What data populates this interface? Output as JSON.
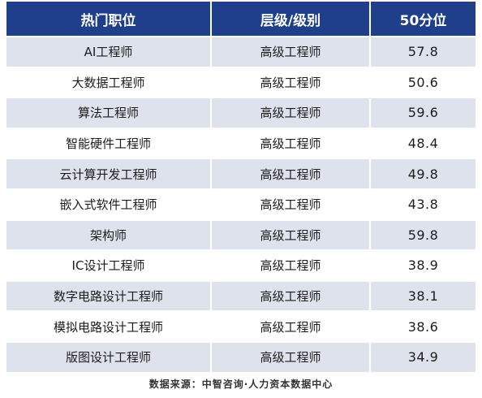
{
  "table": {
    "headers": [
      "热门职位",
      "层级/级别",
      "50分位"
    ],
    "rows": [
      {
        "position": "AI工程师",
        "level": "高级工程师",
        "p50": "57.8"
      },
      {
        "position": "大数据工程师",
        "level": "高级工程师",
        "p50": "50.6"
      },
      {
        "position": "算法工程师",
        "level": "高级工程师",
        "p50": "59.6"
      },
      {
        "position": "智能硬件工程师",
        "level": "高级工程师",
        "p50": "48.4"
      },
      {
        "position": "云计算开发工程师",
        "level": "高级工程师",
        "p50": "49.8"
      },
      {
        "position": "嵌入式软件工程师",
        "level": "高级工程师",
        "p50": "43.8"
      },
      {
        "position": "架构师",
        "level": "高级工程师",
        "p50": "59.8"
      },
      {
        "position": "IC设计工程师",
        "level": "高级工程师",
        "p50": "38.9"
      },
      {
        "position": "数字电路设计工程师",
        "level": "高级工程师",
        "p50": "38.1"
      },
      {
        "position": "模拟电路设计工程师",
        "level": "高级工程师",
        "p50": "38.6"
      },
      {
        "position": "版图设计工程师",
        "level": "高级工程师",
        "p50": "34.9"
      }
    ]
  },
  "footer": {
    "source": "数据来源：中智咨询·人力资本数据中心"
  },
  "colors": {
    "header_bg": "#1f3f8a",
    "stripe_bg": "#dde2ec"
  }
}
